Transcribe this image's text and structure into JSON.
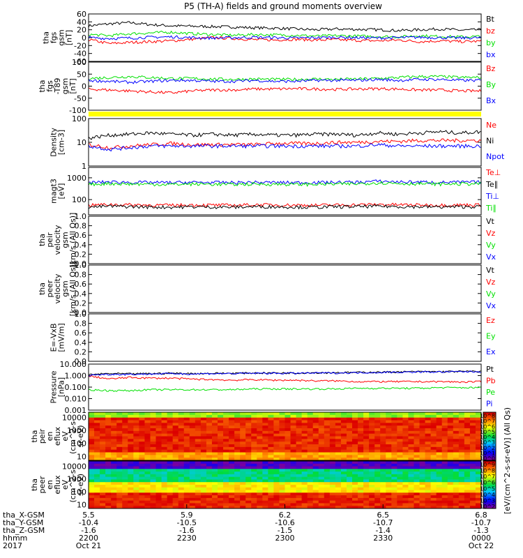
{
  "title": "P5 (TH-A) fields and ground moments overview",
  "colors": {
    "black": "#000000",
    "red": "#ff0000",
    "green": "#00e000",
    "blue": "#0000ff",
    "yellow": "#ffff00"
  },
  "chart_data": [
    {
      "type": "line",
      "id": "fgs",
      "ylabel": [
        "tha",
        "fgs",
        "gsm",
        "[nT]"
      ],
      "yticks": [
        "60",
        "40",
        "20",
        "0",
        "-20",
        "-40",
        "-60"
      ],
      "ylim": [
        -60,
        60
      ],
      "series": [
        {
          "name": "Bt",
          "color": "#000000",
          "values": [
            30,
            35,
            38,
            33,
            30,
            29,
            28,
            27,
            25,
            24,
            22,
            20,
            22,
            21,
            20,
            18,
            20,
            22,
            19,
            20
          ]
        },
        {
          "name": "bz",
          "color": "#ff0000",
          "values": [
            -5,
            -15,
            -12,
            -10,
            -8,
            -4,
            0,
            -2,
            -5,
            -6,
            -4,
            -6,
            -5,
            -7,
            -8,
            -6,
            -10,
            -8,
            -10,
            -9
          ]
        },
        {
          "name": "by",
          "color": "#00e000",
          "values": [
            8,
            5,
            10,
            12,
            14,
            10,
            8,
            6,
            8,
            7,
            6,
            4,
            5,
            4,
            3,
            2,
            5,
            3,
            2,
            3
          ]
        },
        {
          "name": "bx",
          "color": "#0000ff",
          "values": [
            0,
            -2,
            -1,
            1,
            2,
            0,
            -1,
            0,
            1,
            0,
            -1,
            0,
            1,
            0,
            -1,
            0,
            1,
            0,
            -1,
            0
          ]
        }
      ]
    },
    {
      "type": "line",
      "id": "fgs_minus_t89",
      "ylabel": [
        "tha",
        "fgs",
        "-T89",
        "gsm",
        "[nT]"
      ],
      "yticks": [
        "100",
        "50",
        "0",
        "-50",
        "-100"
      ],
      "ylim": [
        -150,
        100
      ],
      "series": [
        {
          "name": "Bz",
          "color": "#ff0000",
          "values": [
            -40,
            -45,
            -50,
            -55,
            -60,
            -50,
            -45,
            -45,
            -40,
            -40,
            -38,
            -40,
            -42,
            -40,
            -38,
            -40,
            -45,
            -45,
            -50,
            -50
          ]
        },
        {
          "name": "By",
          "color": "#00e000",
          "values": [
            15,
            20,
            25,
            20,
            15,
            15,
            12,
            10,
            12,
            10,
            10,
            12,
            10,
            12,
            15,
            20,
            25,
            25,
            20,
            20
          ]
        },
        {
          "name": "Bx",
          "color": "#0000ff",
          "values": [
            5,
            0,
            -5,
            0,
            5,
            5,
            0,
            0,
            5,
            0,
            0,
            5,
            5,
            5,
            10,
            5,
            10,
            10,
            5,
            5
          ]
        }
      ]
    },
    {
      "type": "line",
      "id": "density",
      "ylabel": [
        "Density",
        "[cm-3]"
      ],
      "yticks": [
        "100",
        "10",
        "1"
      ],
      "ylim": [
        1,
        100
      ],
      "log": true,
      "series": [
        {
          "name": "Ne",
          "color": "#ff0000",
          "values": [
            8,
            6,
            7,
            8,
            9,
            8,
            8,
            8,
            8,
            9,
            9,
            9,
            10,
            10,
            11,
            11,
            12,
            12,
            12,
            12
          ]
        },
        {
          "name": "Ni",
          "color": "#000000",
          "values": [
            15,
            20,
            22,
            25,
            22,
            20,
            22,
            20,
            22,
            20,
            20,
            22,
            22,
            20,
            25,
            22,
            25,
            28,
            25,
            28
          ]
        },
        {
          "name": "Npot",
          "color": "#0000ff",
          "values": [
            7,
            5,
            6,
            7,
            7,
            7,
            7,
            7,
            7,
            7,
            7,
            7,
            7,
            7,
            8,
            7,
            7,
            7,
            7,
            7
          ]
        }
      ]
    },
    {
      "type": "line",
      "id": "temperature",
      "ylabel": [
        "magt3",
        "[eV]"
      ],
      "yticks": [
        "1000",
        "100"
      ],
      "ylim": [
        20,
        3000
      ],
      "log": true,
      "series": [
        {
          "name": "Te⊥",
          "color": "#ff0000",
          "values": [
            55,
            60,
            58,
            56,
            55,
            57,
            56,
            55,
            58,
            57,
            56,
            55,
            57,
            58,
            60,
            58,
            57,
            56,
            57,
            58
          ]
        },
        {
          "name": "Te∥",
          "color": "#000000",
          "values": [
            45,
            50,
            48,
            46,
            45,
            47,
            46,
            45,
            48,
            47,
            46,
            45,
            47,
            48,
            50,
            48,
            47,
            46,
            47,
            48
          ]
        },
        {
          "name": "Ti⊥",
          "color": "#0000ff",
          "values": [
            600,
            650,
            620,
            610,
            600,
            620,
            610,
            600,
            620,
            610,
            600,
            610,
            620,
            630,
            700,
            650,
            640,
            620,
            630,
            640
          ]
        },
        {
          "name": "Ti∥",
          "color": "#00e000",
          "values": [
            500,
            550,
            520,
            510,
            500,
            520,
            510,
            500,
            520,
            510,
            500,
            510,
            520,
            530,
            600,
            550,
            540,
            520,
            530,
            540
          ]
        }
      ]
    },
    {
      "type": "line",
      "id": "peir_velocity",
      "ylabel": [
        "tha",
        "peir",
        "velocity",
        "gsm",
        "[km/s (All Qs)]"
      ],
      "yticks": [
        "1.0",
        "0.8",
        "0.6",
        "0.4",
        "0.2",
        "0.0"
      ],
      "ylim": [
        0,
        1
      ],
      "legend": [
        {
          "name": "Vt",
          "color": "#000000"
        },
        {
          "name": "Vz",
          "color": "#ff0000"
        },
        {
          "name": "Vy",
          "color": "#00e000"
        },
        {
          "name": "Vx",
          "color": "#0000ff"
        }
      ]
    },
    {
      "type": "line",
      "id": "peer_velocity",
      "ylabel": [
        "tha",
        "peer",
        "velocity",
        "gsm",
        "[km/s (All Qs)]"
      ],
      "yticks": [
        "1.0",
        "0.8",
        "0.6",
        "0.4",
        "0.2",
        "0.0"
      ],
      "ylim": [
        0,
        1
      ],
      "legend": [
        {
          "name": "Vt",
          "color": "#000000"
        },
        {
          "name": "Vz",
          "color": "#ff0000"
        },
        {
          "name": "Vy",
          "color": "#00e000"
        },
        {
          "name": "Vx",
          "color": "#0000ff"
        }
      ]
    },
    {
      "type": "line",
      "id": "efield",
      "ylabel": [
        "E=-VxB",
        "[mV/m]"
      ],
      "yticks": [
        "1.0",
        "0.8",
        "0.6",
        "0.4",
        "0.2",
        "0.0"
      ],
      "ylim": [
        0,
        1
      ],
      "legend": [
        {
          "name": "Ez",
          "color": "#ff0000"
        },
        {
          "name": "Ey",
          "color": "#00e000"
        },
        {
          "name": "Ex",
          "color": "#0000ff"
        }
      ]
    },
    {
      "type": "line",
      "id": "pressure",
      "ylabel": [
        "Pressure",
        "[nPa]"
      ],
      "yticks": [
        "10.000",
        "1.000",
        "0.100",
        "0.010",
        "0.001"
      ],
      "ylim": [
        0.001,
        10
      ],
      "log": true,
      "series": [
        {
          "name": "Pt",
          "color": "#000000",
          "values": [
            1.2,
            1.5,
            1.4,
            1.5,
            1.6,
            1.5,
            1.6,
            1.6,
            1.7,
            1.7,
            1.7,
            1.8,
            1.8,
            1.9,
            2.0,
            2.1,
            2.2,
            2.2,
            2.3,
            2.3
          ]
        },
        {
          "name": "Pb",
          "color": "#ff0000",
          "values": [
            0.9,
            0.5,
            0.7,
            0.6,
            0.6,
            0.5,
            0.45,
            0.4,
            0.45,
            0.4,
            0.4,
            0.35,
            0.35,
            0.3,
            0.3,
            0.3,
            0.3,
            0.3,
            0.28,
            0.3
          ]
        },
        {
          "name": "Pe",
          "color": "#00e000",
          "values": [
            0.06,
            0.05,
            0.05,
            0.06,
            0.06,
            0.06,
            0.06,
            0.06,
            0.07,
            0.07,
            0.07,
            0.07,
            0.07,
            0.08,
            0.08,
            0.08,
            0.08,
            0.09,
            0.09,
            0.09
          ]
        },
        {
          "name": "Pi",
          "color": "#0000ff",
          "values": [
            1.1,
            1.3,
            1.3,
            1.4,
            1.5,
            1.4,
            1.5,
            1.5,
            1.6,
            1.6,
            1.6,
            1.7,
            1.7,
            1.8,
            1.9,
            2.0,
            2.1,
            2.1,
            2.2,
            2.2
          ]
        }
      ]
    },
    {
      "type": "heatmap",
      "id": "peir_eflux",
      "ylabel": [
        "tha",
        "peir",
        "en",
        "eflux",
        "eV",
        "(cm^2-s-",
        "sr-eV)"
      ],
      "yticks": [
        "10000",
        "1000",
        "100",
        "10"
      ],
      "ylim": [
        5,
        25000
      ],
      "log": true,
      "colorbar_label": "[eV/(cm^2-s-sr-eV)] (All Qs)",
      "colorbar_ticks": [
        "10^8",
        "10^7",
        "10^6",
        "10^5",
        "10^4",
        "10^3",
        "10^2",
        "10^1",
        "10^0"
      ]
    },
    {
      "type": "heatmap",
      "id": "peer_eflux",
      "ylabel": [
        "tha",
        "peer",
        "en",
        "eflux",
        "eV",
        "(cm^2-s-",
        "sr-eV)"
      ],
      "yticks": [
        "10000",
        "1000",
        "100",
        "10"
      ],
      "ylim": [
        5,
        25000
      ],
      "log": true,
      "colorbar_label": "[eV/(cm^2-s-sr-eV)] (All Qs)",
      "colorbar_ticks": [
        "10^9",
        "10^8",
        "10^7",
        "10^6",
        "10^5",
        "10^4",
        "10^3",
        "10^2"
      ]
    }
  ],
  "x_axis": {
    "labels": [
      "tha_X-GSM",
      "tha_Y-GSM",
      "tha_Z-GSM",
      "hhmm",
      "2017"
    ],
    "columns": [
      [
        "5.5",
        "-10.4",
        "-1.6",
        "2200",
        "Oct 21"
      ],
      [
        "5.9",
        "-10.5",
        "-1.6",
        "2230",
        ""
      ],
      [
        "6.2",
        "-10.6",
        "-1.5",
        "2300",
        ""
      ],
      [
        "6.5",
        "-10.7",
        "-1.4",
        "2330",
        ""
      ],
      [
        "6.8",
        "-10.7",
        "-1.3",
        "0000",
        "Oct 22"
      ]
    ]
  }
}
